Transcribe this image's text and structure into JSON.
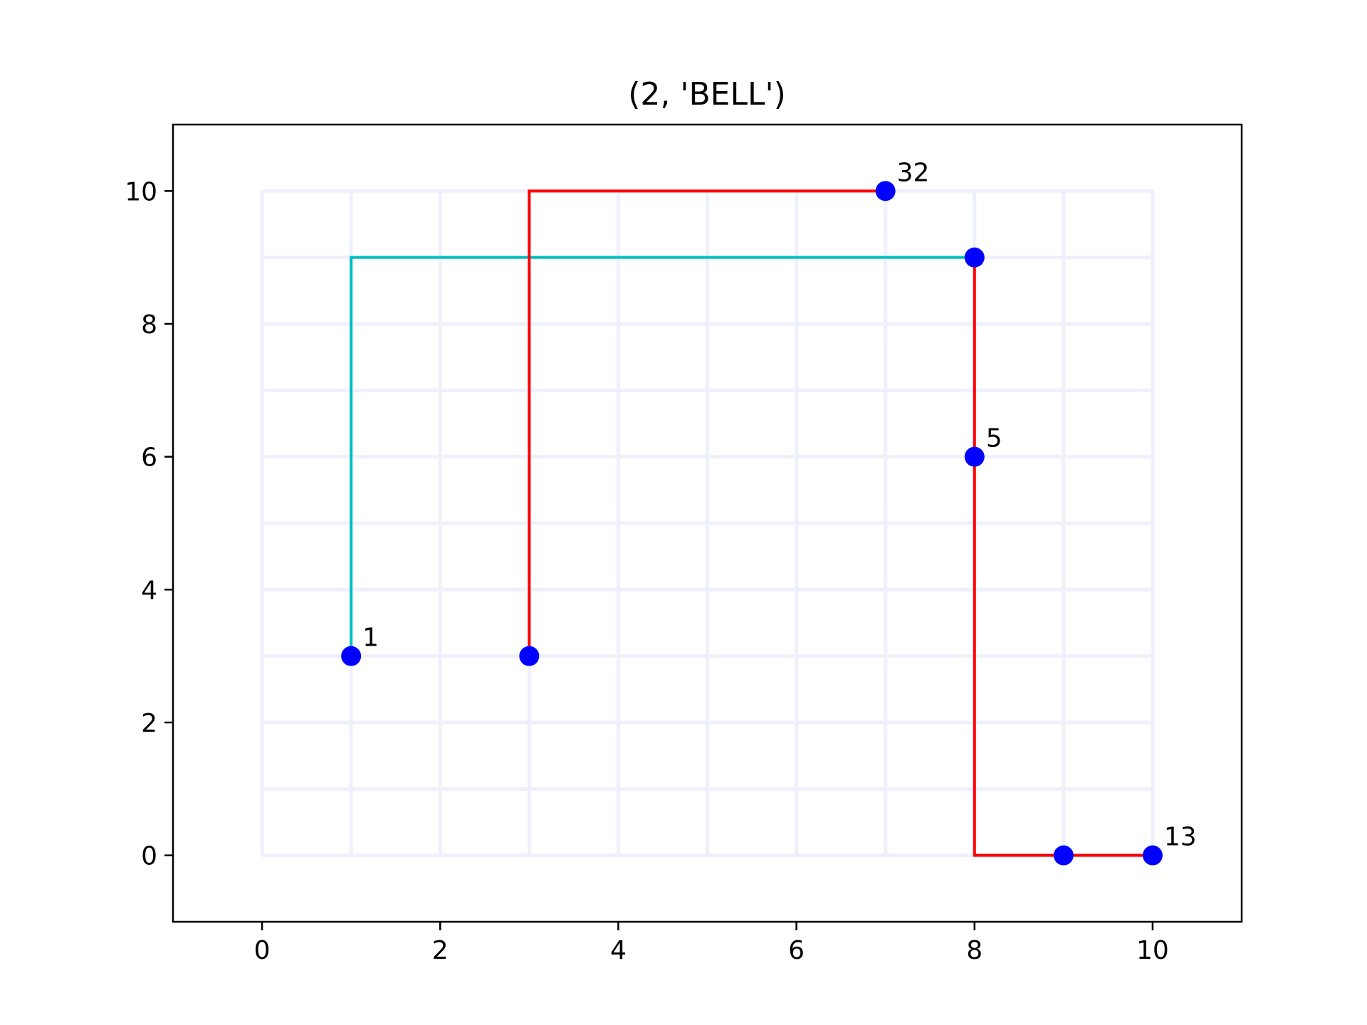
{
  "chart_data": {
    "type": "line",
    "title": "(2, 'BELL')",
    "xlabel": "",
    "ylabel": "",
    "xlim": [
      -1,
      11
    ],
    "ylim": [
      -1,
      11
    ],
    "xticks": [
      0,
      2,
      4,
      6,
      8,
      10
    ],
    "yticks": [
      0,
      2,
      4,
      6,
      8,
      10
    ],
    "grid": {
      "x_from": 0,
      "x_to": 10,
      "x_step": 1,
      "y_from": 0,
      "y_to": 10,
      "y_step": 1,
      "color": "#eef0fb"
    },
    "series": [
      {
        "color": "#00bfbf",
        "points": [
          [
            1,
            3
          ],
          [
            1,
            9
          ],
          [
            8,
            9
          ]
        ]
      },
      {
        "color": "#ff0000",
        "points": [
          [
            3,
            3
          ],
          [
            3,
            10
          ],
          [
            7,
            10
          ]
        ]
      },
      {
        "color": "#ff0000",
        "points": [
          [
            8,
            9
          ],
          [
            8,
            0
          ],
          [
            10,
            0
          ]
        ]
      }
    ],
    "markers": {
      "color": "#0000ff",
      "points": [
        [
          1,
          3
        ],
        [
          3,
          3
        ],
        [
          7,
          10
        ],
        [
          8,
          9
        ],
        [
          8,
          6
        ],
        [
          9,
          0
        ],
        [
          10,
          0
        ]
      ]
    },
    "annotations": [
      {
        "text": "1",
        "x": 1,
        "y": 3
      },
      {
        "text": "32",
        "x": 7,
        "y": 10
      },
      {
        "text": "5",
        "x": 8,
        "y": 6
      },
      {
        "text": "13",
        "x": 10,
        "y": 0
      }
    ]
  }
}
